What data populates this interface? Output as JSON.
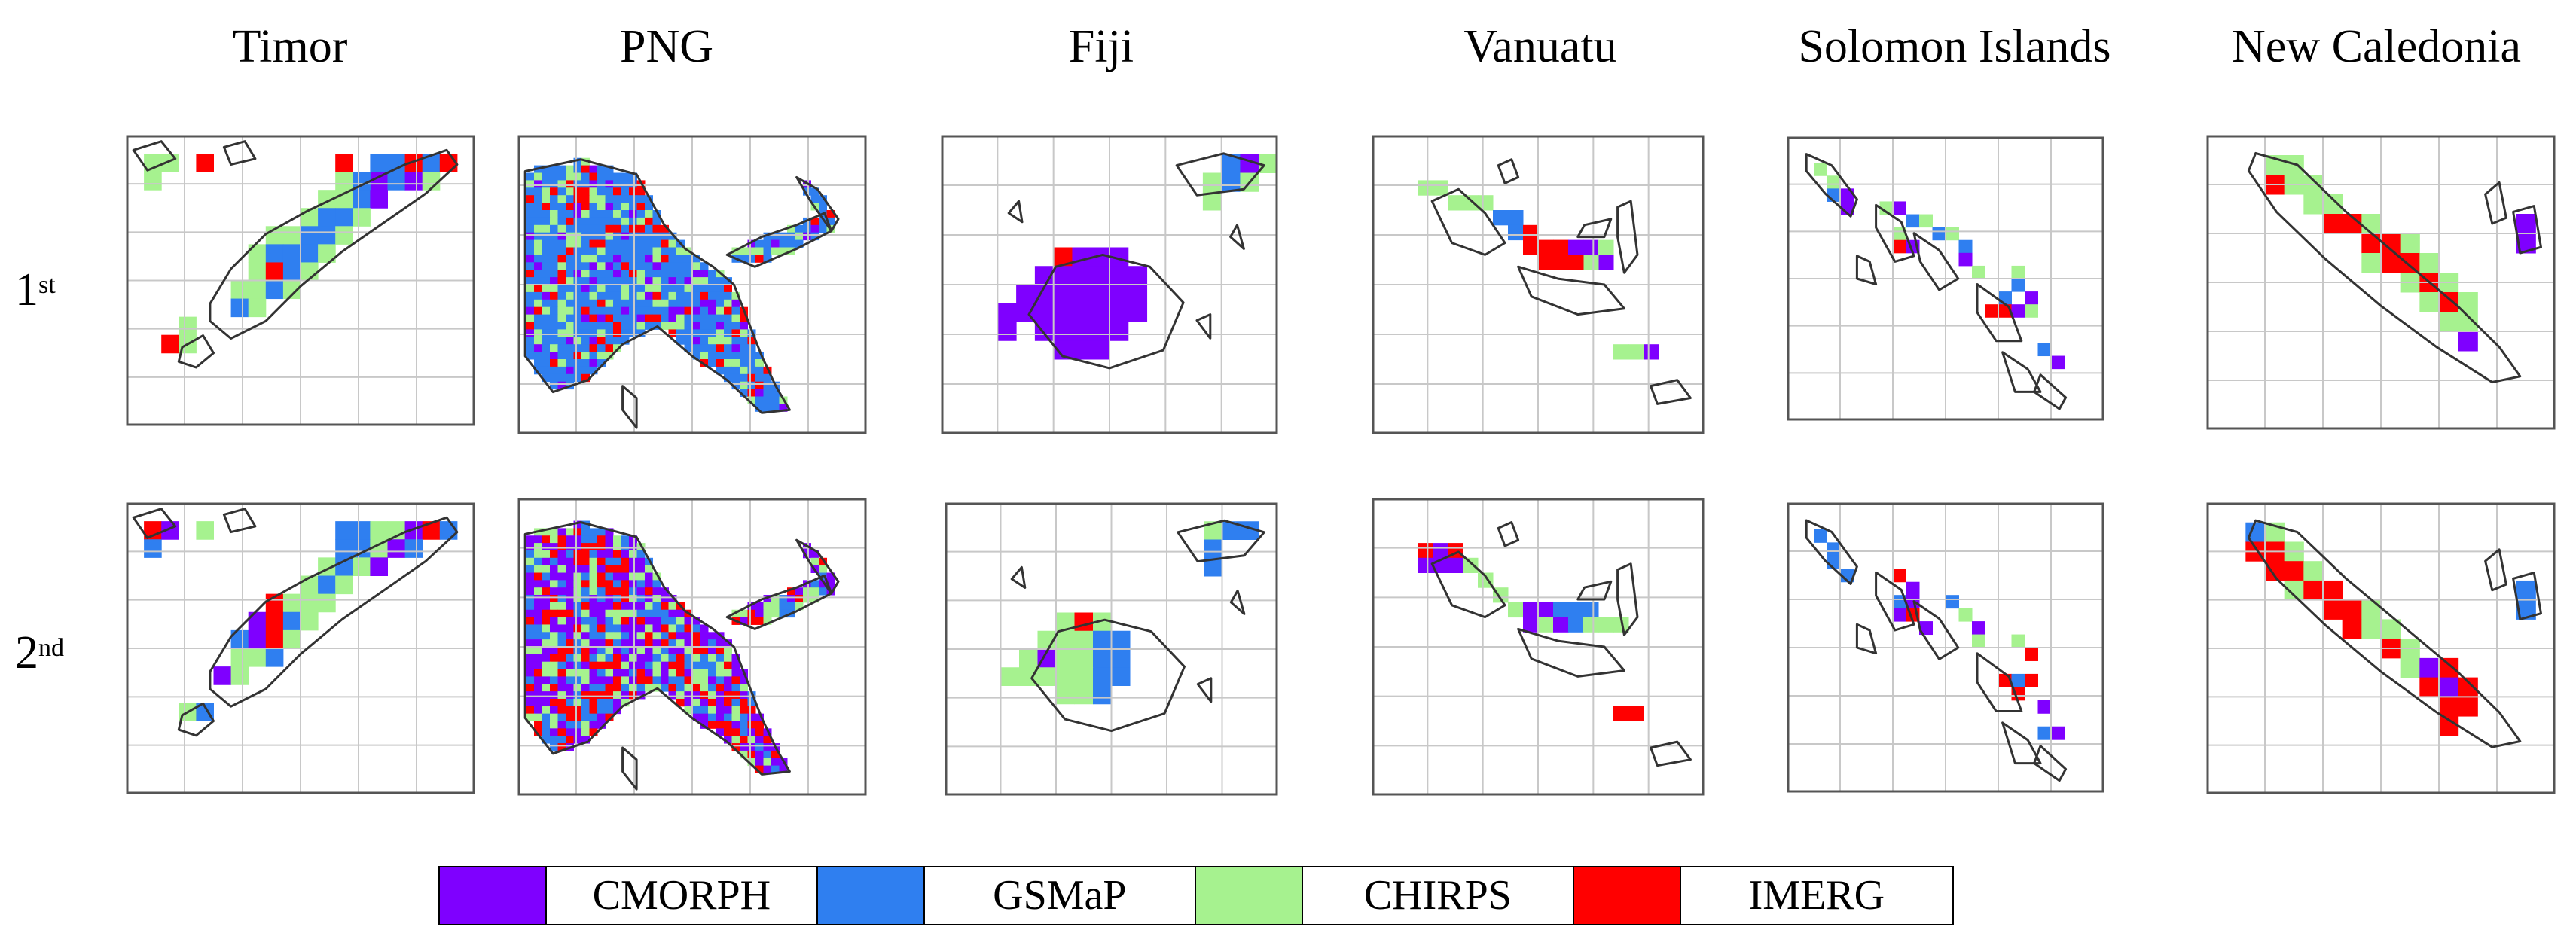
{
  "columns": [
    "Timor",
    "PNG",
    "Fiji",
    "Vanuatu",
    "Solomon Islands",
    "New Caledonia"
  ],
  "rows": [
    {
      "base": "1",
      "sup": "st"
    },
    {
      "base": "2",
      "sup": "nd"
    }
  ],
  "legend": [
    {
      "name": "CMORPH",
      "color": "#7f00ff"
    },
    {
      "name": "GSMaP",
      "color": "#2f7ff0"
    },
    {
      "name": "CHIRPS",
      "color": "#a6f28f"
    },
    {
      "name": "IMERG",
      "color": "#ff0000"
    }
  ],
  "map_style": {
    "grid_color": "#c8c8c8",
    "frame_color": "#555555",
    "coast_color": "#333333"
  }
}
